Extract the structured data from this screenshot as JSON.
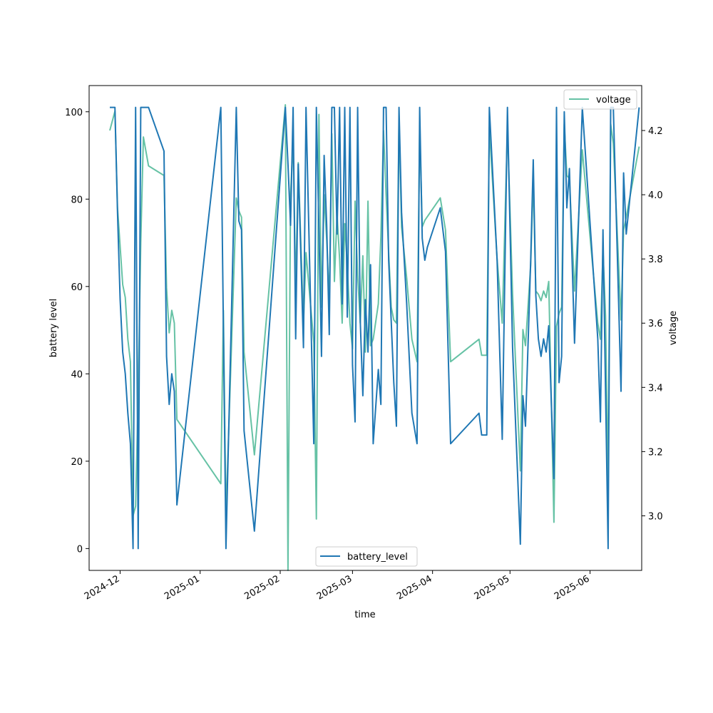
{
  "chart_data": {
    "type": "line",
    "xlabel": "time",
    "ylabel": "battery level",
    "y2label": "voltage",
    "x_ticks": [
      "2024-12",
      "2025-01",
      "2025-02",
      "2025-03",
      "2025-04",
      "2025-05",
      "2025-06"
    ],
    "y_ticks": [
      0,
      20,
      40,
      60,
      80,
      100
    ],
    "y2_ticks": [
      3.0,
      3.2,
      3.4,
      3.6,
      3.8,
      4.0,
      4.2
    ],
    "xlim": [
      "2024-11-19",
      "2025-06-21"
    ],
    "ylim": [
      -5,
      106
    ],
    "y2lim": [
      2.83,
      4.34
    ],
    "grid": false,
    "colors": {
      "battery_level": "#1f77b4",
      "voltage": "#66c2a5"
    },
    "series": [
      {
        "name": "battery_level",
        "axis": "left",
        "legend_position": "lower center",
        "points": [
          [
            "2024-11-27",
            101
          ],
          [
            "2024-11-29",
            101
          ],
          [
            "2024-11-30",
            77
          ],
          [
            "2024-12-01",
            57
          ],
          [
            "2024-12-02",
            45
          ],
          [
            "2024-12-03",
            40
          ],
          [
            "2024-12-04",
            31
          ],
          [
            "2024-12-05",
            24
          ],
          [
            "2024-12-06",
            0
          ],
          [
            "2024-12-07",
            101
          ],
          [
            "2024-12-08",
            0
          ],
          [
            "2024-12-09",
            101
          ],
          [
            "2024-12-12",
            101
          ],
          [
            "2024-12-18",
            91
          ],
          [
            "2024-12-19",
            44
          ],
          [
            "2024-12-20",
            33
          ],
          [
            "2024-12-21",
            40
          ],
          [
            "2024-12-22",
            36
          ],
          [
            "2024-12-23",
            10
          ],
          [
            "2025-01-09",
            101
          ],
          [
            "2025-01-11",
            0
          ],
          [
            "2025-01-15",
            101
          ],
          [
            "2025-01-16",
            75
          ],
          [
            "2025-01-17",
            73
          ],
          [
            "2025-01-18",
            27
          ],
          [
            "2025-01-22",
            4
          ],
          [
            "2025-02-03",
            101
          ],
          [
            "2025-02-04",
            88
          ],
          [
            "2025-02-05",
            74
          ],
          [
            "2025-02-06",
            101
          ],
          [
            "2025-02-07",
            48
          ],
          [
            "2025-02-08",
            88
          ],
          [
            "2025-02-10",
            46
          ],
          [
            "2025-02-11",
            101
          ],
          [
            "2025-02-14",
            24
          ],
          [
            "2025-02-15",
            101
          ],
          [
            "2025-02-16",
            73
          ],
          [
            "2025-02-17",
            44
          ],
          [
            "2025-02-18",
            90
          ],
          [
            "2025-02-19",
            74
          ],
          [
            "2025-02-20",
            49
          ],
          [
            "2025-02-21",
            101
          ],
          [
            "2025-02-22",
            101
          ],
          [
            "2025-02-23",
            72
          ],
          [
            "2025-02-24",
            101
          ],
          [
            "2025-02-25",
            56
          ],
          [
            "2025-02-26",
            101
          ],
          [
            "2025-02-27",
            53
          ],
          [
            "2025-02-28",
            101
          ],
          [
            "2025-03-01",
            42
          ],
          [
            "2025-03-02",
            29
          ],
          [
            "2025-03-03",
            101
          ],
          [
            "2025-03-04",
            52
          ],
          [
            "2025-03-05",
            35
          ],
          [
            "2025-03-06",
            57
          ],
          [
            "2025-03-07",
            45
          ],
          [
            "2025-03-08",
            65
          ],
          [
            "2025-03-09",
            24
          ],
          [
            "2025-03-11",
            41
          ],
          [
            "2025-03-12",
            33
          ],
          [
            "2025-03-13",
            101
          ],
          [
            "2025-03-14",
            101
          ],
          [
            "2025-03-15",
            66
          ],
          [
            "2025-03-16",
            52
          ],
          [
            "2025-03-17",
            38
          ],
          [
            "2025-03-18",
            28
          ],
          [
            "2025-03-19",
            101
          ],
          [
            "2025-03-20",
            77
          ],
          [
            "2025-03-22",
            56
          ],
          [
            "2025-03-24",
            31
          ],
          [
            "2025-03-26",
            24
          ],
          [
            "2025-03-27",
            101
          ],
          [
            "2025-03-28",
            71
          ],
          [
            "2025-03-29",
            66
          ],
          [
            "2025-03-30",
            69
          ],
          [
            "2025-04-04",
            78
          ],
          [
            "2025-04-06",
            68
          ],
          [
            "2025-04-08",
            24
          ],
          [
            "2025-04-19",
            31
          ],
          [
            "2025-04-20",
            26
          ],
          [
            "2025-04-22",
            26
          ],
          [
            "2025-04-23",
            101
          ],
          [
            "2025-04-26",
            66
          ],
          [
            "2025-04-28",
            25
          ],
          [
            "2025-04-30",
            101
          ],
          [
            "2025-05-02",
            46
          ],
          [
            "2025-05-05",
            1
          ],
          [
            "2025-05-06",
            35
          ],
          [
            "2025-05-07",
            28
          ],
          [
            "2025-05-09",
            66
          ],
          [
            "2025-05-10",
            89
          ],
          [
            "2025-05-11",
            58
          ],
          [
            "2025-05-12",
            48
          ],
          [
            "2025-05-13",
            44
          ],
          [
            "2025-05-14",
            48
          ],
          [
            "2025-05-15",
            45
          ],
          [
            "2025-05-16",
            51
          ],
          [
            "2025-05-18",
            16
          ],
          [
            "2025-05-19",
            101
          ],
          [
            "2025-05-20",
            38
          ],
          [
            "2025-05-21",
            44
          ],
          [
            "2025-05-22",
            100
          ],
          [
            "2025-05-23",
            78
          ],
          [
            "2025-05-24",
            87
          ],
          [
            "2025-05-26",
            47
          ],
          [
            "2025-05-29",
            101
          ],
          [
            "2025-06-04",
            48
          ],
          [
            "2025-06-05",
            29
          ],
          [
            "2025-06-06",
            73
          ],
          [
            "2025-06-07",
            36
          ],
          [
            "2025-06-08",
            0
          ],
          [
            "2025-06-09",
            101
          ],
          [
            "2025-06-10",
            101
          ],
          [
            "2025-06-13",
            36
          ],
          [
            "2025-06-14",
            86
          ],
          [
            "2025-06-15",
            72
          ],
          [
            "2025-06-20",
            101
          ]
        ]
      },
      {
        "name": "voltage",
        "axis": "right",
        "legend_position": "upper right",
        "points": [
          [
            "2024-11-27",
            4.2
          ],
          [
            "2024-11-29",
            4.26
          ],
          [
            "2024-11-30",
            3.96
          ],
          [
            "2024-12-02",
            3.72
          ],
          [
            "2024-12-03",
            3.68
          ],
          [
            "2024-12-04",
            3.55
          ],
          [
            "2024-12-05",
            3.48
          ],
          [
            "2024-12-06",
            3.0
          ],
          [
            "2024-12-07",
            3.03
          ],
          [
            "2024-12-08",
            3.38
          ],
          [
            "2024-12-09",
            3.85
          ],
          [
            "2024-12-10",
            4.18
          ],
          [
            "2024-12-12",
            4.09
          ],
          [
            "2024-12-18",
            4.06
          ],
          [
            "2024-12-19",
            3.71
          ],
          [
            "2024-12-20",
            3.57
          ],
          [
            "2024-12-21",
            3.64
          ],
          [
            "2024-12-22",
            3.6
          ],
          [
            "2024-12-23",
            3.3
          ],
          [
            "2025-01-09",
            3.1
          ],
          [
            "2025-01-10",
            3.64
          ],
          [
            "2025-01-11",
            3.0
          ],
          [
            "2025-01-15",
            3.99
          ],
          [
            "2025-01-16",
            3.95
          ],
          [
            "2025-01-17",
            3.93
          ],
          [
            "2025-01-18",
            3.51
          ],
          [
            "2025-01-22",
            3.19
          ],
          [
            "2025-02-03",
            4.28
          ],
          [
            "2025-02-04",
            2.83
          ],
          [
            "2025-02-05",
            4.0
          ],
          [
            "2025-02-06",
            4.17
          ],
          [
            "2025-02-07",
            3.7
          ],
          [
            "2025-02-08",
            4.1
          ],
          [
            "2025-02-10",
            3.6
          ],
          [
            "2025-02-11",
            3.82
          ],
          [
            "2025-02-14",
            3.54
          ],
          [
            "2025-02-15",
            2.99
          ],
          [
            "2025-02-16",
            4.25
          ],
          [
            "2025-02-17",
            3.65
          ],
          [
            "2025-02-18",
            4.0
          ],
          [
            "2025-02-19",
            3.86
          ],
          [
            "2025-02-20",
            3.67
          ],
          [
            "2025-02-21",
            4.19
          ],
          [
            "2025-02-22",
            3.73
          ],
          [
            "2025-02-23",
            3.94
          ],
          [
            "2025-02-24",
            3.8
          ],
          [
            "2025-02-25",
            3.6
          ],
          [
            "2025-02-26",
            3.91
          ],
          [
            "2025-02-27",
            3.78
          ],
          [
            "2025-02-28",
            3.6
          ],
          [
            "2025-03-01",
            3.52
          ],
          [
            "2025-03-02",
            3.98
          ],
          [
            "2025-03-03",
            3.75
          ],
          [
            "2025-03-04",
            3.6
          ],
          [
            "2025-03-05",
            3.81
          ],
          [
            "2025-03-06",
            3.51
          ],
          [
            "2025-03-07",
            3.98
          ],
          [
            "2025-03-08",
            3.53
          ],
          [
            "2025-03-09",
            3.55
          ],
          [
            "2025-03-11",
            3.66
          ],
          [
            "2025-03-12",
            3.87
          ],
          [
            "2025-03-13",
            4.2
          ],
          [
            "2025-03-14",
            4.0
          ],
          [
            "2025-03-15",
            3.82
          ],
          [
            "2025-03-16",
            3.65
          ],
          [
            "2025-03-17",
            3.61
          ],
          [
            "2025-03-18",
            3.6
          ],
          [
            "2025-03-19",
            4.23
          ],
          [
            "2025-03-20",
            3.9
          ],
          [
            "2025-03-22",
            3.74
          ],
          [
            "2025-03-24",
            3.55
          ],
          [
            "2025-03-26",
            3.48
          ],
          [
            "2025-03-27",
            4.21
          ],
          [
            "2025-03-28",
            3.9
          ],
          [
            "2025-03-29",
            3.92
          ],
          [
            "2025-04-04",
            3.99
          ],
          [
            "2025-04-06",
            3.89
          ],
          [
            "2025-04-08",
            3.48
          ],
          [
            "2025-04-19",
            3.55
          ],
          [
            "2025-04-20",
            3.5
          ],
          [
            "2025-04-22",
            3.5
          ],
          [
            "2025-04-23",
            4.21
          ],
          [
            "2025-04-26",
            3.8
          ],
          [
            "2025-04-28",
            3.6
          ],
          [
            "2025-04-30",
            4.21
          ],
          [
            "2025-05-02",
            3.69
          ],
          [
            "2025-05-05",
            3.14
          ],
          [
            "2025-05-06",
            3.58
          ],
          [
            "2025-05-07",
            3.53
          ],
          [
            "2025-05-09",
            3.78
          ],
          [
            "2025-05-10",
            4.05
          ],
          [
            "2025-05-11",
            3.7
          ],
          [
            "2025-05-12",
            3.69
          ],
          [
            "2025-05-13",
            3.67
          ],
          [
            "2025-05-14",
            3.7
          ],
          [
            "2025-05-15",
            3.68
          ],
          [
            "2025-05-16",
            3.73
          ],
          [
            "2025-05-18",
            2.98
          ],
          [
            "2025-05-19",
            3.59
          ],
          [
            "2025-05-20",
            3.63
          ],
          [
            "2025-05-21",
            3.65
          ],
          [
            "2025-05-22",
            4.22
          ],
          [
            "2025-05-23",
            4.06
          ],
          [
            "2025-05-24",
            4.05
          ],
          [
            "2025-05-26",
            3.7
          ],
          [
            "2025-05-29",
            4.14
          ],
          [
            "2025-06-04",
            3.6
          ],
          [
            "2025-06-05",
            3.55
          ],
          [
            "2025-06-06",
            3.83
          ],
          [
            "2025-06-07",
            3.62
          ],
          [
            "2025-06-08",
            3.1
          ],
          [
            "2025-06-09",
            4.22
          ],
          [
            "2025-06-10",
            4.16
          ],
          [
            "2025-06-13",
            3.61
          ],
          [
            "2025-06-14",
            3.89
          ],
          [
            "2025-06-15",
            3.93
          ],
          [
            "2025-06-20",
            4.15
          ]
        ]
      }
    ]
  }
}
